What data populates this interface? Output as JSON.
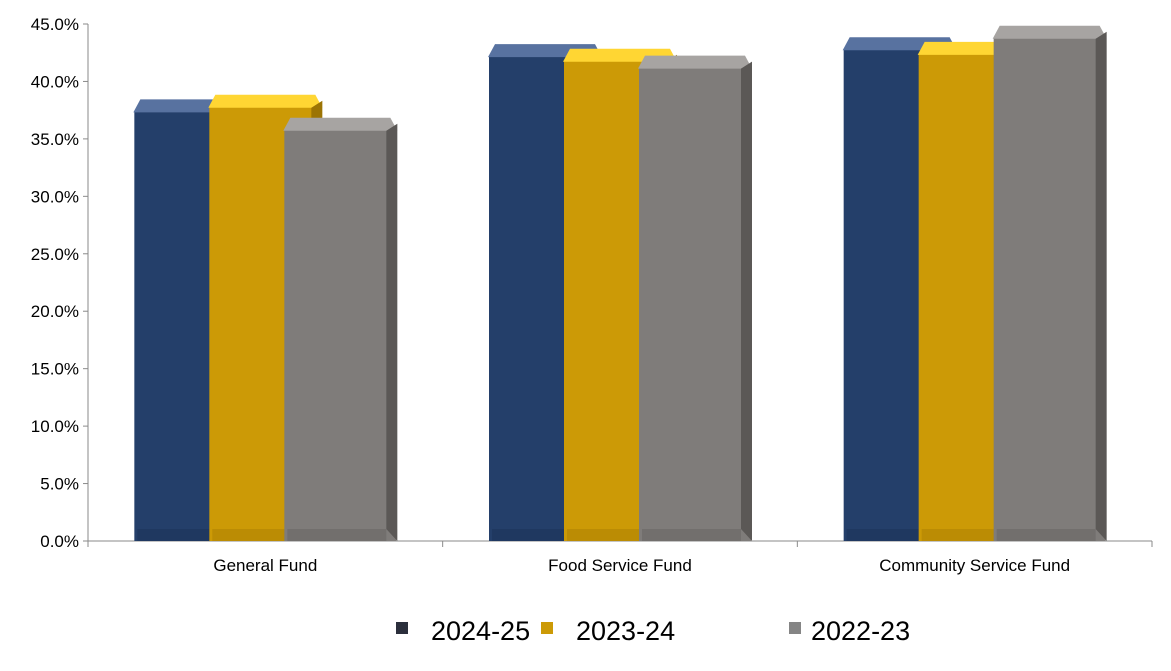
{
  "chart_data": {
    "type": "bar",
    "style": "3d-beveled-clustered",
    "categories": [
      "General Fund",
      "Food Service Fund",
      "Community Service Fund"
    ],
    "series": [
      {
        "name": "2024-25",
        "values": [
          37.4,
          42.2,
          42.8
        ],
        "colors": {
          "front": "#243f6a",
          "top": "#5872a0",
          "side": "#172b4c",
          "legend": "#2b2f3c"
        }
      },
      {
        "name": "2023-24",
        "values": [
          37.8,
          41.8,
          42.4
        ],
        "colors": {
          "front": "#cc9a06",
          "top": "#ffd633",
          "side": "#9c7404",
          "legend": "#cc9a06"
        }
      },
      {
        "name": "2022-23",
        "values": [
          35.8,
          41.2,
          43.8
        ],
        "colors": {
          "front": "#7f7c7a",
          "top": "#a7a4a2",
          "side": "#5b5856",
          "legend": "#858585"
        }
      }
    ],
    "ylim": [
      0,
      45
    ],
    "y_ticks": [
      "0.0%",
      "5.0%",
      "10.0%",
      "15.0%",
      "20.0%",
      "25.0%",
      "30.0%",
      "35.0%",
      "40.0%",
      "45.0%"
    ],
    "title": "",
    "xlabel": "",
    "ylabel": "",
    "grid": false,
    "legend_position": "bottom"
  }
}
